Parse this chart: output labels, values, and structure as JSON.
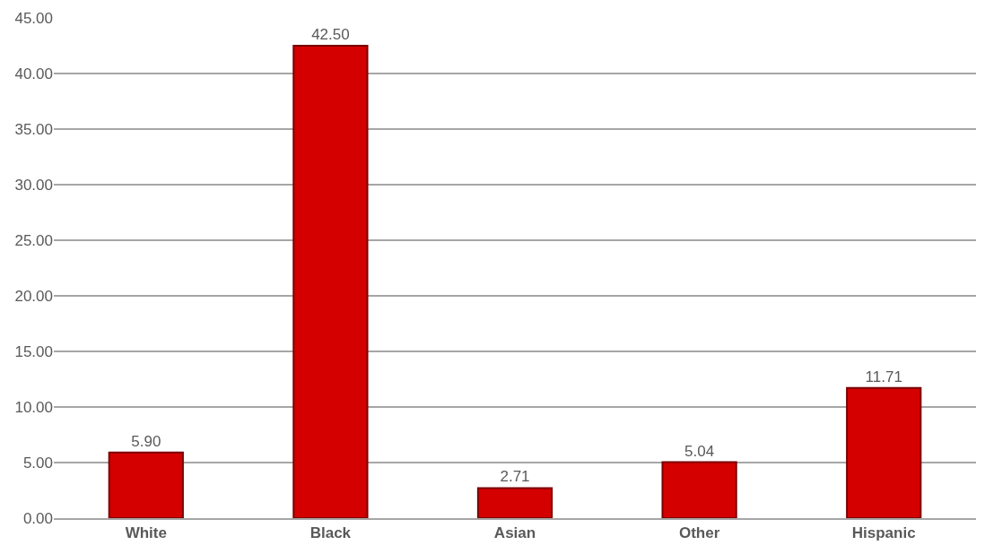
{
  "chart_data": {
    "type": "bar",
    "categories": [
      "White",
      "Black",
      "Asian",
      "Other",
      "Hispanic"
    ],
    "values": [
      5.9,
      42.5,
      2.71,
      5.04,
      11.71
    ],
    "value_labels": [
      "5.90",
      "42.50",
      "2.71",
      "5.04",
      "11.71"
    ],
    "color": "#d40000",
    "ylim": [
      0,
      45
    ],
    "yticks": [
      {
        "value": 0,
        "label": "0.00"
      },
      {
        "value": 5,
        "label": "5.00"
      },
      {
        "value": 10,
        "label": "10.00"
      },
      {
        "value": 15,
        "label": "15.00"
      },
      {
        "value": 20,
        "label": "20.00"
      },
      {
        "value": 25,
        "label": "25.00"
      },
      {
        "value": 30,
        "label": "30.00"
      },
      {
        "value": 35,
        "label": "35.00"
      },
      {
        "value": 40,
        "label": "40.00"
      },
      {
        "value": 45,
        "label": "45.00"
      }
    ],
    "grid": "y",
    "legend": false
  }
}
